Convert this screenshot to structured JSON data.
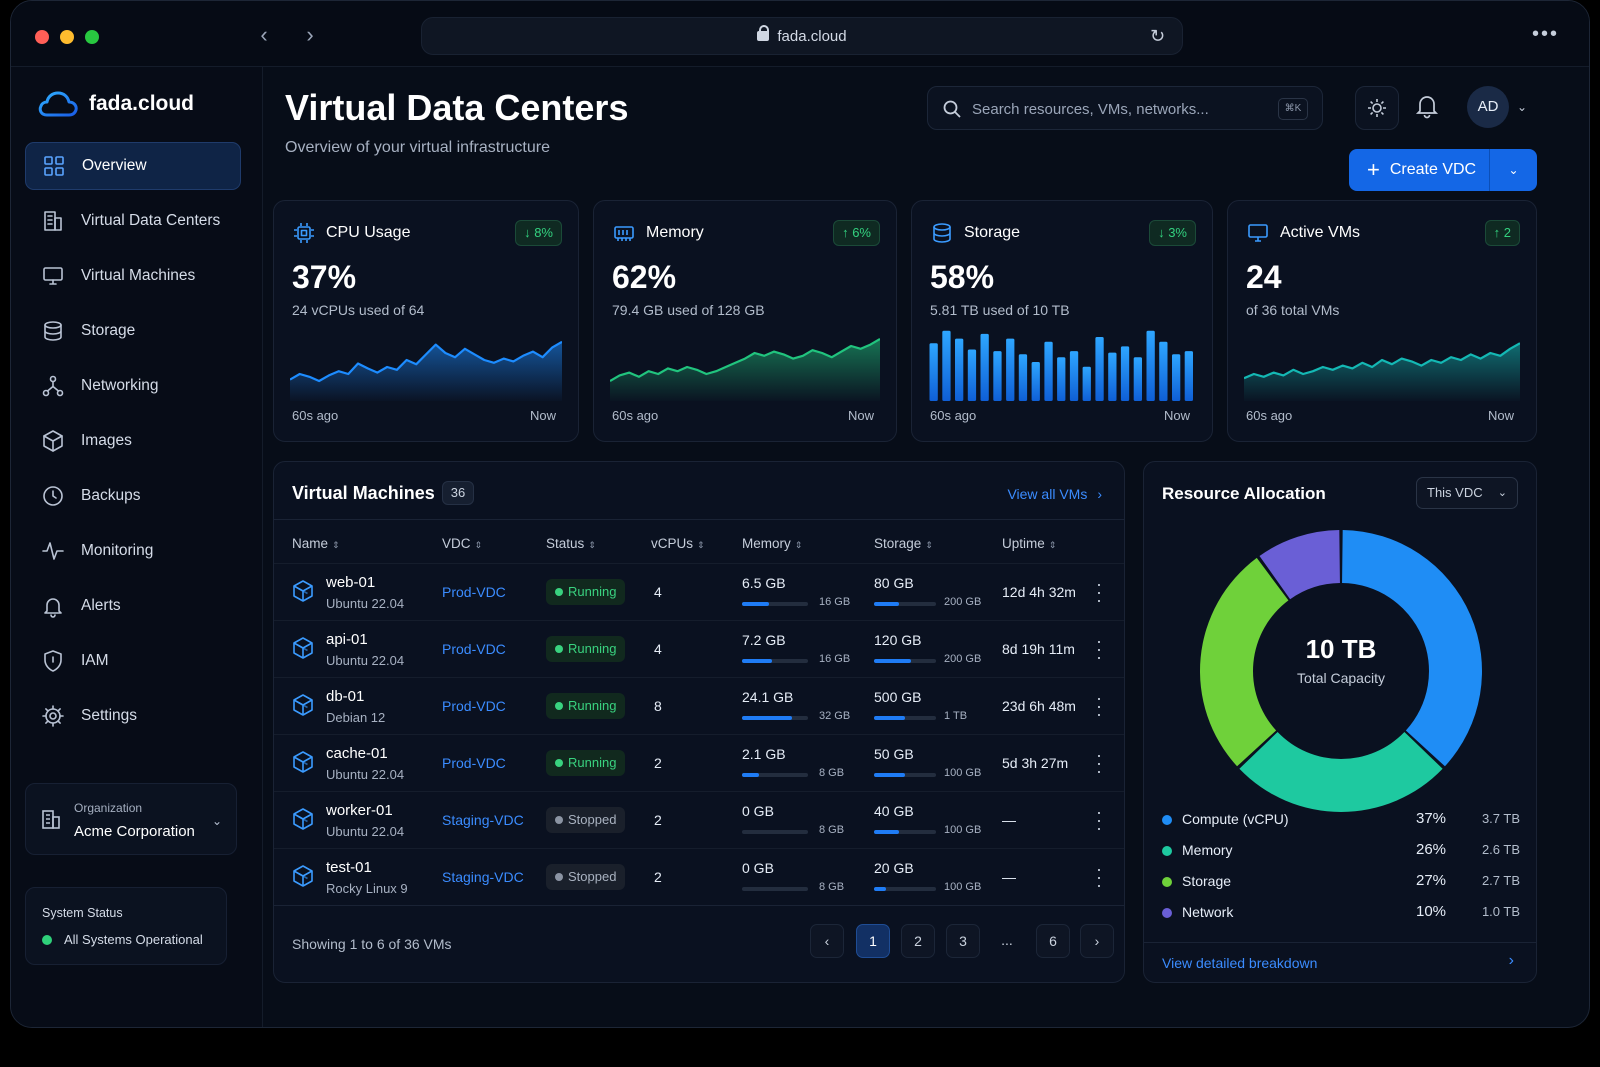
{
  "browser": {
    "url": "fada.cloud"
  },
  "brand": {
    "name": "fada.cloud"
  },
  "sidebar": {
    "items": [
      {
        "label": "Overview",
        "icon": "grid-icon",
        "active": true
      },
      {
        "label": "Virtual Data Centers",
        "icon": "building-icon"
      },
      {
        "label": "Virtual Machines",
        "icon": "monitor-icon"
      },
      {
        "label": "Storage",
        "icon": "database-icon"
      },
      {
        "label": "Networking",
        "icon": "network-icon"
      },
      {
        "label": "Images",
        "icon": "cube-icon"
      },
      {
        "label": "Backups",
        "icon": "clock-icon"
      },
      {
        "label": "Monitoring",
        "icon": "activity-icon"
      },
      {
        "label": "Alerts",
        "icon": "bell-icon"
      },
      {
        "label": "IAM",
        "icon": "shield-icon"
      },
      {
        "label": "Settings",
        "icon": "gear-icon"
      }
    ],
    "organization": {
      "label": "Organization",
      "name": "Acme Corporation"
    },
    "system_status": {
      "label": "System Status",
      "text": "All Systems Operational"
    }
  },
  "header": {
    "title": "Virtual Data Centers",
    "subtitle": "Overview of your virtual infrastructure",
    "search_placeholder": "Search resources, VMs, networks...",
    "search_shortcut": "⌘K",
    "avatar": "AD",
    "create_label": "Create VDC"
  },
  "metrics": [
    {
      "title": "CPU Usage",
      "badge": "↓ 8%",
      "value": "37%",
      "sub": "24 vCPUs used of 64",
      "from": "60s ago",
      "to": "Now",
      "chart": "line",
      "color": "#1d8cff",
      "series": [
        0.22,
        0.3,
        0.26,
        0.2,
        0.28,
        0.34,
        0.3,
        0.45,
        0.38,
        0.32,
        0.4,
        0.36,
        0.5,
        0.44,
        0.58,
        0.72,
        0.6,
        0.54,
        0.66,
        0.58,
        0.5,
        0.46,
        0.52,
        0.48,
        0.56,
        0.62,
        0.54,
        0.68,
        0.76
      ]
    },
    {
      "title": "Memory",
      "badge": "↑ 6%",
      "value": "62%",
      "sub": "79.4 GB used of 128 GB",
      "from": "60s ago",
      "to": "Now",
      "chart": "line",
      "color": "#21c47e",
      "series": [
        0.2,
        0.28,
        0.32,
        0.26,
        0.34,
        0.3,
        0.38,
        0.34,
        0.4,
        0.36,
        0.3,
        0.34,
        0.4,
        0.46,
        0.52,
        0.6,
        0.56,
        0.62,
        0.58,
        0.52,
        0.56,
        0.64,
        0.6,
        0.54,
        0.62,
        0.7,
        0.66,
        0.72,
        0.8
      ]
    },
    {
      "title": "Storage",
      "badge": "↓ 3%",
      "value": "58%",
      "sub": "5.81 TB used of 10 TB",
      "from": "60s ago",
      "to": "Now",
      "chart": "bar",
      "color": "#1f8df5",
      "series": [
        0.74,
        0.9,
        0.8,
        0.66,
        0.86,
        0.64,
        0.8,
        0.6,
        0.5,
        0.76,
        0.56,
        0.64,
        0.44,
        0.82,
        0.62,
        0.7,
        0.56,
        0.9,
        0.76,
        0.6,
        0.64
      ]
    },
    {
      "title": "Active VMs",
      "badge": "↑ 2",
      "value": "24",
      "sub": "of 36 total VMs",
      "from": "60s ago",
      "to": "Now",
      "chart": "line",
      "color": "#14b8b4",
      "series": [
        0.24,
        0.3,
        0.26,
        0.32,
        0.28,
        0.36,
        0.3,
        0.34,
        0.4,
        0.36,
        0.42,
        0.38,
        0.46,
        0.4,
        0.5,
        0.44,
        0.52,
        0.48,
        0.42,
        0.5,
        0.46,
        0.54,
        0.5,
        0.58,
        0.52,
        0.6,
        0.56,
        0.66,
        0.74
      ]
    }
  ],
  "vms": {
    "title": "Virtual Machines",
    "count": "36",
    "view_all": "View all VMs",
    "columns": [
      "Name",
      "VDC",
      "Status",
      "vCPUs",
      "Memory",
      "Storage",
      "Uptime"
    ],
    "rows": [
      {
        "name": "web-01",
        "os": "Ubuntu 22.04",
        "vdc": "Prod-VDC",
        "status": "Running",
        "vcpus": "4",
        "mem": "6.5 GB",
        "mem_max": "16 GB",
        "mem_frac": 0.41,
        "sto": "80 GB",
        "sto_max": "200 GB",
        "sto_frac": 0.4,
        "uptime": "12d 4h 32m"
      },
      {
        "name": "api-01",
        "os": "Ubuntu 22.04",
        "vdc": "Prod-VDC",
        "status": "Running",
        "vcpus": "4",
        "mem": "7.2 GB",
        "mem_max": "16 GB",
        "mem_frac": 0.45,
        "sto": "120 GB",
        "sto_max": "200 GB",
        "sto_frac": 0.6,
        "uptime": "8d 19h 11m"
      },
      {
        "name": "db-01",
        "os": "Debian 12",
        "vdc": "Prod-VDC",
        "status": "Running",
        "vcpus": "8",
        "mem": "24.1 GB",
        "mem_max": "32 GB",
        "mem_frac": 0.75,
        "sto": "500 GB",
        "sto_max": "1 TB",
        "sto_frac": 0.5,
        "uptime": "23d 6h 48m"
      },
      {
        "name": "cache-01",
        "os": "Ubuntu 22.04",
        "vdc": "Prod-VDC",
        "status": "Running",
        "vcpus": "2",
        "mem": "2.1 GB",
        "mem_max": "8 GB",
        "mem_frac": 0.26,
        "sto": "50 GB",
        "sto_max": "100 GB",
        "sto_frac": 0.5,
        "uptime": "5d 3h 27m"
      },
      {
        "name": "worker-01",
        "os": "Ubuntu 22.04",
        "vdc": "Staging-VDC",
        "status": "Stopped",
        "vcpus": "2",
        "mem": "0 GB",
        "mem_max": "8 GB",
        "mem_frac": 0,
        "sto": "40 GB",
        "sto_max": "100 GB",
        "sto_frac": 0.4,
        "uptime": "—"
      },
      {
        "name": "test-01",
        "os": "Rocky Linux 9",
        "vdc": "Staging-VDC",
        "status": "Stopped",
        "vcpus": "2",
        "mem": "0 GB",
        "mem_max": "8 GB",
        "mem_frac": 0,
        "sto": "20 GB",
        "sto_max": "100 GB",
        "sto_frac": 0.2,
        "uptime": "—"
      }
    ],
    "footer": "Showing 1 to 6 of 36 VMs",
    "pages": [
      "1",
      "2",
      "3",
      "...",
      "6"
    ],
    "current_page": "1"
  },
  "allocation": {
    "title": "Resource Allocation",
    "scope": "This VDC",
    "center_value": "10 TB",
    "center_label": "Total Capacity",
    "items": [
      {
        "name": "Compute (vCPU)",
        "pct": "37%",
        "size": "3.7 TB",
        "value": 37,
        "color": "#1f8df5"
      },
      {
        "name": "Memory",
        "pct": "26%",
        "size": "2.6 TB",
        "value": 26,
        "color": "#1ec9a0"
      },
      {
        "name": "Storage",
        "pct": "27%",
        "size": "2.7 TB",
        "value": 27,
        "color": "#6fd13a"
      },
      {
        "name": "Network",
        "pct": "10%",
        "size": "1.0 TB",
        "value": 10,
        "color": "#6a5fd6"
      }
    ],
    "footer_link": "View detailed breakdown"
  }
}
